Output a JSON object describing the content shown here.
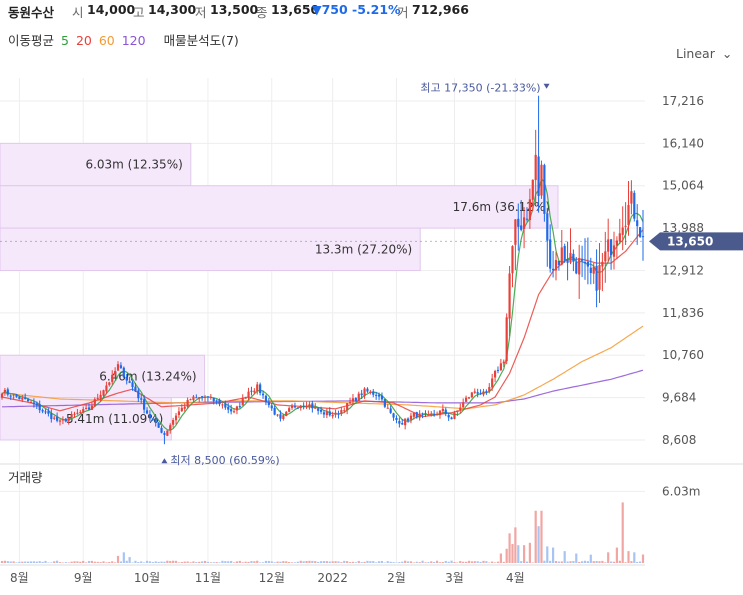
{
  "header": {
    "name": "동원수산",
    "open_label": "시",
    "open": "14,000",
    "high_label": "고",
    "high": "14,300",
    "low_label": "저",
    "low": "13,500",
    "close_label": "종",
    "close": "13,650",
    "change": "▼750",
    "change_pct": "-5.21%",
    "volume_label": "거",
    "volume": "712,966"
  },
  "legend": {
    "ma_title": "이동평균",
    "ma5": "5",
    "ma20": "20",
    "ma60": "60",
    "ma120": "120",
    "vp_title": "매물분석도(7)"
  },
  "scale_label": "Linear",
  "chart_data": {
    "type": "candlestick",
    "price_ylim": [
      8100,
      17800
    ],
    "price_ticks": [
      "17,216",
      "16,140",
      "15,064",
      "13,988",
      "12,912",
      "11,836",
      "10,760",
      "9,684",
      "8,608"
    ],
    "price_tick_values": [
      17216,
      16140,
      15064,
      13988,
      12912,
      11836,
      10760,
      9684,
      8608
    ],
    "volume_ylim": [
      0,
      8000000
    ],
    "volume_ticks": [
      "6.03m"
    ],
    "volume_tick_values": [
      6030000
    ],
    "volume_title": "거래량",
    "x_labels": [
      "8월",
      "9월",
      "10월",
      "11월",
      "12월",
      "2022",
      "2월",
      "3월",
      "4월"
    ],
    "x_label_index": [
      6,
      28,
      50,
      71,
      93,
      114,
      136,
      156,
      177
    ],
    "current_price": "13,650",
    "current_price_value": 13650,
    "max_annotation": "최고 17,350 (-21.33%)",
    "max_value": 17350,
    "max_index": 185,
    "min_annotation": "최저 8,500 (60.59%)",
    "min_value": 8500,
    "min_index": 56,
    "volume_profile": [
      {
        "label": "6.03m (12.35%)",
        "pct": 12.35,
        "price_low": 15064,
        "price_high": 16140
      },
      {
        "label": "17.6m (36.12%)",
        "pct": 36.12,
        "price_low": 13988,
        "price_high": 15064
      },
      {
        "label": "13.3m (27.20%)",
        "pct": 27.2,
        "price_low": 12912,
        "price_high": 13988
      },
      {
        "label": "6.46m (13.24%)",
        "pct": 13.24,
        "price_low": 9684,
        "price_high": 10760
      },
      {
        "label": "5.41m (11.09%)",
        "pct": 11.09,
        "price_low": 8608,
        "price_high": 9684
      }
    ],
    "close_path": [
      [
        0,
        9850
      ],
      [
        5,
        9700
      ],
      [
        10,
        9550
      ],
      [
        15,
        9300
      ],
      [
        20,
        9050
      ],
      [
        25,
        9250
      ],
      [
        30,
        9400
      ],
      [
        35,
        9900
      ],
      [
        38,
        10200
      ],
      [
        40,
        10500
      ],
      [
        43,
        10150
      ],
      [
        46,
        9850
      ],
      [
        50,
        9300
      ],
      [
        53,
        9000
      ],
      [
        56,
        8750
      ],
      [
        60,
        9250
      ],
      [
        65,
        9650
      ],
      [
        70,
        9700
      ],
      [
        75,
        9550
      ],
      [
        80,
        9300
      ],
      [
        85,
        9850
      ],
      [
        88,
        9950
      ],
      [
        92,
        9500
      ],
      [
        96,
        9100
      ],
      [
        100,
        9450
      ],
      [
        105,
        9550
      ],
      [
        110,
        9300
      ],
      [
        115,
        9250
      ],
      [
        120,
        9550
      ],
      [
        125,
        9850
      ],
      [
        130,
        9750
      ],
      [
        135,
        9150
      ],
      [
        138,
        9050
      ],
      [
        142,
        9250
      ],
      [
        147,
        9200
      ],
      [
        152,
        9350
      ],
      [
        155,
        9150
      ],
      [
        160,
        9650
      ],
      [
        163,
        9850
      ],
      [
        167,
        9750
      ],
      [
        170,
        10300
      ],
      [
        173,
        10650
      ],
      [
        175,
        12800
      ],
      [
        177,
        13900
      ],
      [
        180,
        14300
      ],
      [
        182,
        14600
      ],
      [
        184,
        15800
      ],
      [
        185,
        14800
      ],
      [
        186,
        15400
      ],
      [
        188,
        13500
      ],
      [
        190,
        13050
      ],
      [
        193,
        13350
      ],
      [
        196,
        13250
      ],
      [
        199,
        13050
      ],
      [
        202,
        12750
      ],
      [
        205,
        12700
      ],
      [
        208,
        13250
      ],
      [
        211,
        13800
      ],
      [
        214,
        14300
      ],
      [
        217,
        14600
      ],
      [
        219,
        14300
      ],
      [
        221,
        13650
      ]
    ],
    "ma20_path": [
      [
        0,
        9700
      ],
      [
        10,
        9550
      ],
      [
        20,
        9350
      ],
      [
        30,
        9550
      ],
      [
        40,
        9800
      ],
      [
        45,
        9900
      ],
      [
        55,
        9450
      ],
      [
        65,
        9500
      ],
      [
        75,
        9550
      ],
      [
        85,
        9700
      ],
      [
        95,
        9500
      ],
      [
        105,
        9450
      ],
      [
        115,
        9400
      ],
      [
        125,
        9600
      ],
      [
        135,
        9550
      ],
      [
        145,
        9200
      ],
      [
        155,
        9300
      ],
      [
        165,
        9500
      ],
      [
        170,
        9700
      ],
      [
        175,
        10300
      ],
      [
        180,
        11200
      ],
      [
        185,
        12300
      ],
      [
        190,
        12900
      ],
      [
        195,
        13200
      ],
      [
        200,
        13200
      ],
      [
        205,
        13100
      ],
      [
        210,
        13100
      ],
      [
        215,
        13400
      ],
      [
        221,
        13950
      ]
    ],
    "ma60_path": [
      [
        0,
        9800
      ],
      [
        20,
        9650
      ],
      [
        40,
        9600
      ],
      [
        60,
        9550
      ],
      [
        80,
        9600
      ],
      [
        100,
        9600
      ],
      [
        120,
        9550
      ],
      [
        140,
        9500
      ],
      [
        150,
        9450
      ],
      [
        160,
        9400
      ],
      [
        170,
        9500
      ],
      [
        180,
        9750
      ],
      [
        190,
        10150
      ],
      [
        200,
        10600
      ],
      [
        210,
        10950
      ],
      [
        221,
        11500
      ]
    ],
    "ma120_path": [
      [
        0,
        9450
      ],
      [
        30,
        9500
      ],
      [
        60,
        9550
      ],
      [
        90,
        9580
      ],
      [
        120,
        9600
      ],
      [
        150,
        9550
      ],
      [
        170,
        9550
      ],
      [
        180,
        9650
      ],
      [
        190,
        9850
      ],
      [
        200,
        10000
      ],
      [
        210,
        10150
      ],
      [
        221,
        10380
      ]
    ],
    "volume_spikes": [
      [
        40,
        600000
      ],
      [
        42,
        900000
      ],
      [
        44,
        500000
      ],
      [
        172,
        800000
      ],
      [
        174,
        1200000
      ],
      [
        175,
        2500000
      ],
      [
        176,
        1600000
      ],
      [
        177,
        3000000
      ],
      [
        178,
        1500000
      ],
      [
        180,
        1500000
      ],
      [
        182,
        1700000
      ],
      [
        184,
        4400000
      ],
      [
        185,
        3100000
      ],
      [
        186,
        4400000
      ],
      [
        188,
        1400000
      ],
      [
        190,
        1300000
      ],
      [
        194,
        1000000
      ],
      [
        198,
        800000
      ],
      [
        203,
        700000
      ],
      [
        209,
        900000
      ],
      [
        212,
        1300000
      ],
      [
        214,
        5100000
      ],
      [
        216,
        1000000
      ],
      [
        218,
        900000
      ],
      [
        221,
        712966
      ]
    ]
  },
  "colors": {
    "up": "#e8413b",
    "down": "#1e6ae8",
    "ma5": "#2e9e3a",
    "ma20": "#e8413b",
    "ma60": "#f39a33",
    "ma120": "#8c54d4",
    "vp_fill": "#f6e8fb",
    "vp_stroke": "#e1c8ec",
    "price_tag": "#4a5a8c",
    "grid": "#eeeeee"
  }
}
